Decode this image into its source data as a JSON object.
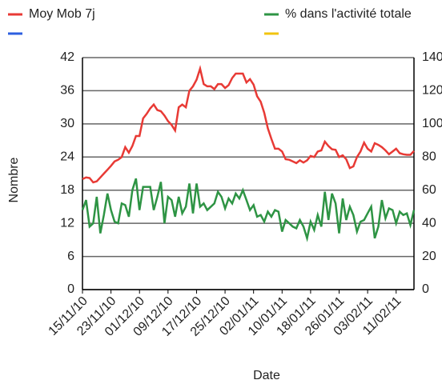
{
  "chart_data": {
    "type": "line",
    "xlabel": "Date",
    "ylabel": "Nombre",
    "x": [
      "2010-11-15",
      "2010-11-16",
      "2010-11-17",
      "2010-11-18",
      "2010-11-19",
      "2010-11-20",
      "2010-11-21",
      "2010-11-22",
      "2010-11-23",
      "2010-11-24",
      "2010-11-25",
      "2010-11-26",
      "2010-11-27",
      "2010-11-28",
      "2010-11-29",
      "2010-11-30",
      "2010-12-01",
      "2010-12-02",
      "2010-12-03",
      "2010-12-04",
      "2010-12-05",
      "2010-12-06",
      "2010-12-07",
      "2010-12-08",
      "2010-12-09",
      "2010-12-10",
      "2010-12-11",
      "2010-12-12",
      "2010-12-13",
      "2010-12-14",
      "2010-12-15",
      "2010-12-16",
      "2010-12-17",
      "2010-12-18",
      "2010-12-19",
      "2010-12-20",
      "2010-12-21",
      "2010-12-22",
      "2010-12-23",
      "2010-12-24",
      "2010-12-25",
      "2010-12-26",
      "2010-12-27",
      "2010-12-28",
      "2010-12-29",
      "2010-12-30",
      "2010-12-31",
      "2011-01-01",
      "2011-01-02",
      "2011-01-03",
      "2011-01-04",
      "2011-01-05",
      "2011-01-06",
      "2011-01-07",
      "2011-01-08",
      "2011-01-09",
      "2011-01-10",
      "2011-01-11",
      "2011-01-12",
      "2011-01-13",
      "2011-01-14",
      "2011-01-15",
      "2011-01-16",
      "2011-01-17",
      "2011-01-18",
      "2011-01-19",
      "2011-01-20",
      "2011-01-21",
      "2011-01-22",
      "2011-01-23",
      "2011-01-24",
      "2011-01-25",
      "2011-01-26",
      "2011-01-27",
      "2011-01-28",
      "2011-01-29",
      "2011-01-30",
      "2011-01-31",
      "2011-02-01",
      "2011-02-02",
      "2011-02-03",
      "2011-02-04",
      "2011-02-05",
      "2011-02-06",
      "2011-02-07",
      "2011-02-08",
      "2011-02-09",
      "2011-02-10",
      "2011-02-11",
      "2011-02-12",
      "2011-02-13",
      "2011-02-14",
      "2011-02-15",
      "2011-02-16"
    ],
    "series": [
      {
        "name": "Moy Mob 7j",
        "color": "#e83a35",
        "values": [
          20,
          20.3,
          20.2,
          19.4,
          19.6,
          20.3,
          21,
          21.7,
          22.4,
          23.2,
          23.5,
          24,
          25.8,
          24.8,
          26,
          27.8,
          27.8,
          31,
          31.8,
          32.8,
          33.5,
          32.5,
          32.3,
          31.5,
          30.5,
          29.8,
          28.8,
          33,
          33.5,
          33,
          36,
          36.8,
          38,
          40,
          37.2,
          36.8,
          36.8,
          36.3,
          37.2,
          37.2,
          36.5,
          37,
          38.3,
          39.1,
          39.1,
          39.1,
          37.5,
          38.1,
          37.1,
          35,
          34,
          32,
          29.2,
          27.3,
          25.5,
          25.5,
          25,
          23.6,
          23.5,
          23.2,
          22.9,
          23.4,
          23,
          23.4,
          24.2,
          24,
          25,
          25.2,
          26.8,
          26,
          25.4,
          25.3,
          24,
          24.3,
          23.6,
          22,
          22.3,
          24,
          25,
          26.6,
          25.5,
          25,
          26.5,
          26.2,
          25.8,
          25.2,
          24.5,
          25,
          25.5,
          24.7,
          24.5,
          24.4,
          24.4,
          25.1
        ]
      },
      {
        "name": "% dans l'activité totale",
        "color": "#2e9444",
        "axis": "y2",
        "values": [
          48,
          54,
          38,
          40,
          56,
          34,
          45,
          58,
          48,
          41,
          40,
          52,
          51,
          44,
          60,
          67,
          48,
          62,
          62,
          62,
          48,
          56,
          65,
          40,
          56,
          54,
          44,
          56,
          46,
          50,
          64,
          46,
          64,
          50,
          52,
          48,
          50,
          52,
          59,
          56,
          49,
          55,
          52,
          58,
          55,
          60,
          54,
          48,
          51,
          44,
          45,
          41,
          47,
          44,
          48,
          47,
          35,
          42,
          40,
          38,
          37,
          42,
          38,
          31,
          41,
          36,
          45,
          38,
          59,
          42,
          58,
          52,
          34,
          55,
          42,
          50,
          45,
          35,
          41,
          42,
          46,
          50,
          31,
          38,
          54,
          43,
          49,
          48,
          40,
          47,
          45,
          46,
          39,
          48
        ]
      }
    ],
    "xlim": [
      "2010-11-15",
      "2011-02-16"
    ],
    "xticks": [
      {
        "value": "2010-11-15",
        "label": "15/11/10"
      },
      {
        "value": "2010-11-23",
        "label": "23/11/10"
      },
      {
        "value": "2010-12-01",
        "label": "01/12/10"
      },
      {
        "value": "2010-12-09",
        "label": "09/12/10"
      },
      {
        "value": "2010-12-17",
        "label": "17/12/10"
      },
      {
        "value": "2010-12-25",
        "label": "25/12/10"
      },
      {
        "value": "2011-01-02",
        "label": "02/01/11"
      },
      {
        "value": "2011-01-10",
        "label": "10/01/11"
      },
      {
        "value": "2011-01-18",
        "label": "18/01/11"
      },
      {
        "value": "2011-01-26",
        "label": "26/01/11"
      },
      {
        "value": "2011-02-03",
        "label": "03/02/11"
      },
      {
        "value": "2011-02-11",
        "label": "11/02/11"
      }
    ],
    "ylim": [
      0,
      42
    ],
    "yticks": [
      0,
      6,
      12,
      18,
      24,
      30,
      36,
      42
    ],
    "y2lim": [
      0,
      140
    ],
    "y2ticks": [
      0,
      20,
      40,
      60,
      80,
      100,
      120,
      140
    ],
    "grid": true
  }
}
